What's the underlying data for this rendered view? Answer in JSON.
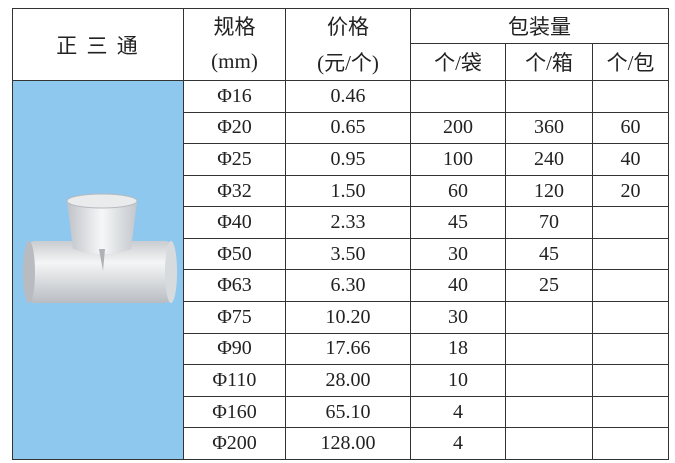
{
  "header": {
    "title": "正 三 通",
    "spec": "规格",
    "spec_unit": "(mm)",
    "price": "价格",
    "price_unit": "(元/个)",
    "packing": "包装量",
    "packing_units": [
      "个/袋",
      "个/箱",
      "个/包"
    ]
  },
  "rows": [
    [
      "Φ16",
      "0.46",
      null,
      null,
      null
    ],
    [
      "Φ20",
      "0.65",
      200,
      360,
      60
    ],
    [
      "Φ25",
      "0.95",
      100,
      240,
      40
    ],
    [
      "Φ32",
      "1.50",
      60,
      120,
      20
    ],
    [
      "Φ40",
      "2.33",
      45,
      70,
      null
    ],
    [
      "Φ50",
      "3.50",
      30,
      45,
      null
    ],
    [
      "Φ63",
      "6.30",
      40,
      25,
      null
    ],
    [
      "Φ75",
      "10.20",
      30,
      null,
      null
    ],
    [
      "Φ90",
      "17.66",
      18,
      null,
      null
    ],
    [
      "Φ110",
      "28.00",
      10,
      null,
      null
    ],
    [
      "Φ160",
      "65.10",
      4,
      null,
      null
    ],
    [
      "Φ200",
      "128.00",
      4,
      null,
      null
    ]
  ]
}
